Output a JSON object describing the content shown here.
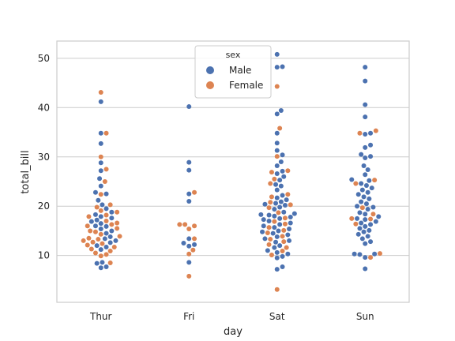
{
  "chart_data": {
    "type": "swarm",
    "title": "",
    "xlabel": "day",
    "ylabel": "total_bill",
    "categories": [
      "Thur",
      "Fri",
      "Sat",
      "Sun"
    ],
    "ylim": [
      0.5,
      53.5
    ],
    "yticks": [
      10,
      20,
      30,
      40,
      50
    ],
    "grid": "horizontal",
    "legend": {
      "title": "sex",
      "placement": "top-center"
    },
    "colors": {
      "Male": "#4c72b0",
      "Female": "#dd8452",
      "grid": "#cccccc",
      "spine": "#cccccc"
    },
    "series": [
      {
        "name": "Male",
        "points": [
          {
            "day": "Thur",
            "y": 41.2
          },
          {
            "day": "Thur",
            "y": 34.8
          },
          {
            "day": "Thur",
            "y": 32.7
          },
          {
            "day": "Thur",
            "y": 28.8
          },
          {
            "day": "Thur",
            "y": 27.2
          },
          {
            "day": "Thur",
            "y": 25.6
          },
          {
            "day": "Thur",
            "y": 24.1
          },
          {
            "day": "Thur",
            "y": 22.8
          },
          {
            "day": "Thur",
            "y": 22.5
          },
          {
            "day": "Thur",
            "y": 21.2
          },
          {
            "day": "Thur",
            "y": 20.3
          },
          {
            "day": "Thur",
            "y": 19.5
          },
          {
            "day": "Thur",
            "y": 18.8
          },
          {
            "day": "Thur",
            "y": 18.3
          },
          {
            "day": "Thur",
            "y": 17.9
          },
          {
            "day": "Thur",
            "y": 17.6
          },
          {
            "day": "Thur",
            "y": 17.2
          },
          {
            "day": "Thur",
            "y": 16.9
          },
          {
            "day": "Thur",
            "y": 16.5
          },
          {
            "day": "Thur",
            "y": 16.0
          },
          {
            "day": "Thur",
            "y": 15.9
          },
          {
            "day": "Thur",
            "y": 15.4
          },
          {
            "day": "Thur",
            "y": 15.0
          },
          {
            "day": "Thur",
            "y": 14.5
          },
          {
            "day": "Thur",
            "y": 13.8
          },
          {
            "day": "Thur",
            "y": 13.4
          },
          {
            "day": "Thur",
            "y": 13.0
          },
          {
            "day": "Thur",
            "y": 12.6
          },
          {
            "day": "Thur",
            "y": 12.0
          },
          {
            "day": "Thur",
            "y": 11.7
          },
          {
            "day": "Thur",
            "y": 11.2
          },
          {
            "day": "Thur",
            "y": 8.6
          },
          {
            "day": "Thur",
            "y": 8.4
          },
          {
            "day": "Thur",
            "y": 7.7
          },
          {
            "day": "Thur",
            "y": 7.5
          },
          {
            "day": "Fri",
            "y": 40.2
          },
          {
            "day": "Fri",
            "y": 28.9
          },
          {
            "day": "Fri",
            "y": 27.3
          },
          {
            "day": "Fri",
            "y": 22.5
          },
          {
            "day": "Fri",
            "y": 21.0
          },
          {
            "day": "Fri",
            "y": 13.4
          },
          {
            "day": "Fri",
            "y": 12.5
          },
          {
            "day": "Fri",
            "y": 12.2
          },
          {
            "day": "Fri",
            "y": 11.9
          },
          {
            "day": "Fri",
            "y": 8.6
          },
          {
            "day": "Sat",
            "y": 50.8
          },
          {
            "day": "Sat",
            "y": 48.3
          },
          {
            "day": "Sat",
            "y": 48.2
          },
          {
            "day": "Sat",
            "y": 39.4
          },
          {
            "day": "Sat",
            "y": 38.7
          },
          {
            "day": "Sat",
            "y": 34.8
          },
          {
            "day": "Sat",
            "y": 32.8
          },
          {
            "day": "Sat",
            "y": 31.3
          },
          {
            "day": "Sat",
            "y": 30.4
          },
          {
            "day": "Sat",
            "y": 29.0
          },
          {
            "day": "Sat",
            "y": 28.2
          },
          {
            "day": "Sat",
            "y": 27.1
          },
          {
            "day": "Sat",
            "y": 26.6
          },
          {
            "day": "Sat",
            "y": 26.0
          },
          {
            "day": "Sat",
            "y": 25.3
          },
          {
            "day": "Sat",
            "y": 24.4
          },
          {
            "day": "Sat",
            "y": 24.1
          },
          {
            "day": "Sat",
            "y": 23.3
          },
          {
            "day": "Sat",
            "y": 22.2
          },
          {
            "day": "Sat",
            "y": 21.7
          },
          {
            "day": "Sat",
            "y": 21.3
          },
          {
            "day": "Sat",
            "y": 20.9
          },
          {
            "day": "Sat",
            "y": 20.6
          },
          {
            "day": "Sat",
            "y": 20.4
          },
          {
            "day": "Sat",
            "y": 20.2
          },
          {
            "day": "Sat",
            "y": 19.8
          },
          {
            "day": "Sat",
            "y": 19.4
          },
          {
            "day": "Sat",
            "y": 18.8
          },
          {
            "day": "Sat",
            "y": 18.5
          },
          {
            "day": "Sat",
            "y": 18.3
          },
          {
            "day": "Sat",
            "y": 18.2
          },
          {
            "day": "Sat",
            "y": 18.0
          },
          {
            "day": "Sat",
            "y": 17.8
          },
          {
            "day": "Sat",
            "y": 17.5
          },
          {
            "day": "Sat",
            "y": 17.3
          },
          {
            "day": "Sat",
            "y": 17.0
          },
          {
            "day": "Sat",
            "y": 16.6
          },
          {
            "day": "Sat",
            "y": 16.3
          },
          {
            "day": "Sat",
            "y": 16.0
          },
          {
            "day": "Sat",
            "y": 15.7
          },
          {
            "day": "Sat",
            "y": 15.4
          },
          {
            "day": "Sat",
            "y": 15.0
          },
          {
            "day": "Sat",
            "y": 14.8
          },
          {
            "day": "Sat",
            "y": 14.5
          },
          {
            "day": "Sat",
            "y": 14.2
          },
          {
            "day": "Sat",
            "y": 13.8
          },
          {
            "day": "Sat",
            "y": 13.4
          },
          {
            "day": "Sat",
            "y": 13.0
          },
          {
            "day": "Sat",
            "y": 12.7
          },
          {
            "day": "Sat",
            "y": 12.0
          },
          {
            "day": "Sat",
            "y": 11.6
          },
          {
            "day": "Sat",
            "y": 11.0
          },
          {
            "day": "Sat",
            "y": 10.6
          },
          {
            "day": "Sat",
            "y": 10.3
          },
          {
            "day": "Sat",
            "y": 9.8
          },
          {
            "day": "Sat",
            "y": 9.5
          },
          {
            "day": "Sat",
            "y": 7.7
          },
          {
            "day": "Sat",
            "y": 7.2
          },
          {
            "day": "Sun",
            "y": 48.2
          },
          {
            "day": "Sun",
            "y": 45.4
          },
          {
            "day": "Sun",
            "y": 40.6
          },
          {
            "day": "Sun",
            "y": 38.1
          },
          {
            "day": "Sun",
            "y": 34.8
          },
          {
            "day": "Sun",
            "y": 34.6
          },
          {
            "day": "Sun",
            "y": 32.4
          },
          {
            "day": "Sun",
            "y": 31.9
          },
          {
            "day": "Sun",
            "y": 30.5
          },
          {
            "day": "Sun",
            "y": 30.1
          },
          {
            "day": "Sun",
            "y": 29.8
          },
          {
            "day": "Sun",
            "y": 28.2
          },
          {
            "day": "Sun",
            "y": 27.4
          },
          {
            "day": "Sun",
            "y": 26.4
          },
          {
            "day": "Sun",
            "y": 25.4
          },
          {
            "day": "Sun",
            "y": 25.2
          },
          {
            "day": "Sun",
            "y": 24.6
          },
          {
            "day": "Sun",
            "y": 24.2
          },
          {
            "day": "Sun",
            "y": 23.7
          },
          {
            "day": "Sun",
            "y": 23.3
          },
          {
            "day": "Sun",
            "y": 22.8
          },
          {
            "day": "Sun",
            "y": 22.4
          },
          {
            "day": "Sun",
            "y": 21.9
          },
          {
            "day": "Sun",
            "y": 21.5
          },
          {
            "day": "Sun",
            "y": 20.9
          },
          {
            "day": "Sun",
            "y": 20.5
          },
          {
            "day": "Sun",
            "y": 20.0
          },
          {
            "day": "Sun",
            "y": 19.8
          },
          {
            "day": "Sun",
            "y": 19.4
          },
          {
            "day": "Sun",
            "y": 18.7
          },
          {
            "day": "Sun",
            "y": 18.4
          },
          {
            "day": "Sun",
            "y": 17.9
          },
          {
            "day": "Sun",
            "y": 17.5
          },
          {
            "day": "Sun",
            "y": 17.3
          },
          {
            "day": "Sun",
            "y": 16.9
          },
          {
            "day": "Sun",
            "y": 16.6
          },
          {
            "day": "Sun",
            "y": 16.3
          },
          {
            "day": "Sun",
            "y": 15.9
          },
          {
            "day": "Sun",
            "y": 15.5
          },
          {
            "day": "Sun",
            "y": 15.1
          },
          {
            "day": "Sun",
            "y": 14.8
          },
          {
            "day": "Sun",
            "y": 14.3
          },
          {
            "day": "Sun",
            "y": 13.9
          },
          {
            "day": "Sun",
            "y": 13.4
          },
          {
            "day": "Sun",
            "y": 12.8
          },
          {
            "day": "Sun",
            "y": 12.4
          },
          {
            "day": "Sun",
            "y": 10.3
          },
          {
            "day": "Sun",
            "y": 10.3
          },
          {
            "day": "Sun",
            "y": 10.2
          },
          {
            "day": "Sun",
            "y": 9.6
          },
          {
            "day": "Sun",
            "y": 7.3
          }
        ]
      },
      {
        "name": "Female",
        "points": [
          {
            "day": "Thur",
            "y": 43.1
          },
          {
            "day": "Thur",
            "y": 34.8
          },
          {
            "day": "Thur",
            "y": 30.0
          },
          {
            "day": "Thur",
            "y": 27.5
          },
          {
            "day": "Thur",
            "y": 25.0
          },
          {
            "day": "Thur",
            "y": 22.4
          },
          {
            "day": "Thur",
            "y": 20.3
          },
          {
            "day": "Thur",
            "y": 19.8
          },
          {
            "day": "Thur",
            "y": 19.1
          },
          {
            "day": "Thur",
            "y": 18.8
          },
          {
            "day": "Thur",
            "y": 18.2
          },
          {
            "day": "Thur",
            "y": 17.9
          },
          {
            "day": "Thur",
            "y": 17.0
          },
          {
            "day": "Thur",
            "y": 16.6
          },
          {
            "day": "Thur",
            "y": 16.3
          },
          {
            "day": "Thur",
            "y": 16.0
          },
          {
            "day": "Thur",
            "y": 15.5
          },
          {
            "day": "Thur",
            "y": 15.0
          },
          {
            "day": "Thur",
            "y": 14.8
          },
          {
            "day": "Thur",
            "y": 14.3
          },
          {
            "day": "Thur",
            "y": 13.9
          },
          {
            "day": "Thur",
            "y": 13.5
          },
          {
            "day": "Thur",
            "y": 13.3
          },
          {
            "day": "Thur",
            "y": 13.0
          },
          {
            "day": "Thur",
            "y": 12.7
          },
          {
            "day": "Thur",
            "y": 12.4
          },
          {
            "day": "Thur",
            "y": 12.1
          },
          {
            "day": "Thur",
            "y": 11.7
          },
          {
            "day": "Thur",
            "y": 11.3
          },
          {
            "day": "Thur",
            "y": 10.9
          },
          {
            "day": "Thur",
            "y": 10.5
          },
          {
            "day": "Thur",
            "y": 10.2
          },
          {
            "day": "Thur",
            "y": 9.9
          },
          {
            "day": "Thur",
            "y": 8.5
          },
          {
            "day": "Fri",
            "y": 22.8
          },
          {
            "day": "Fri",
            "y": 16.3
          },
          {
            "day": "Fri",
            "y": 16.3
          },
          {
            "day": "Fri",
            "y": 16.0
          },
          {
            "day": "Fri",
            "y": 15.4
          },
          {
            "day": "Fri",
            "y": 13.4
          },
          {
            "day": "Fri",
            "y": 11.1
          },
          {
            "day": "Fri",
            "y": 10.3
          },
          {
            "day": "Fri",
            "y": 5.8
          },
          {
            "day": "Sat",
            "y": 44.3
          },
          {
            "day": "Sat",
            "y": 35.8
          },
          {
            "day": "Sat",
            "y": 30.1
          },
          {
            "day": "Sat",
            "y": 27.2
          },
          {
            "day": "Sat",
            "y": 26.9
          },
          {
            "day": "Sat",
            "y": 25.5
          },
          {
            "day": "Sat",
            "y": 24.6
          },
          {
            "day": "Sat",
            "y": 22.4
          },
          {
            "day": "Sat",
            "y": 21.9
          },
          {
            "day": "Sat",
            "y": 20.8
          },
          {
            "day": "Sat",
            "y": 20.3
          },
          {
            "day": "Sat",
            "y": 19.7
          },
          {
            "day": "Sat",
            "y": 18.7
          },
          {
            "day": "Sat",
            "y": 17.6
          },
          {
            "day": "Sat",
            "y": 16.9
          },
          {
            "day": "Sat",
            "y": 16.4
          },
          {
            "day": "Sat",
            "y": 15.7
          },
          {
            "day": "Sat",
            "y": 15.1
          },
          {
            "day": "Sat",
            "y": 14.6
          },
          {
            "day": "Sat",
            "y": 13.9
          },
          {
            "day": "Sat",
            "y": 13.3
          },
          {
            "day": "Sat",
            "y": 12.8
          },
          {
            "day": "Sat",
            "y": 12.2
          },
          {
            "day": "Sat",
            "y": 11.6
          },
          {
            "day": "Sat",
            "y": 10.9
          },
          {
            "day": "Sat",
            "y": 10.1
          },
          {
            "day": "Sat",
            "y": 3.1
          },
          {
            "day": "Sun",
            "y": 35.3
          },
          {
            "day": "Sun",
            "y": 34.8
          },
          {
            "day": "Sun",
            "y": 25.3
          },
          {
            "day": "Sun",
            "y": 24.6
          },
          {
            "day": "Sun",
            "y": 19.7
          },
          {
            "day": "Sun",
            "y": 18.4
          },
          {
            "day": "Sun",
            "y": 17.5
          },
          {
            "day": "Sun",
            "y": 17.4
          },
          {
            "day": "Sun",
            "y": 16.4
          },
          {
            "day": "Sun",
            "y": 10.4
          },
          {
            "day": "Sun",
            "y": 9.6
          }
        ]
      }
    ]
  }
}
